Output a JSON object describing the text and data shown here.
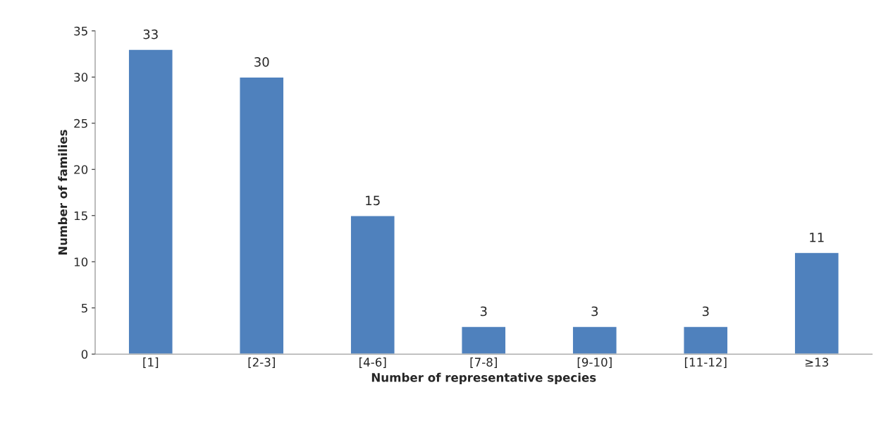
{
  "chart_data": {
    "type": "bar",
    "xlabel": "Number of representative species",
    "ylabel": "Number of families",
    "categories": [
      "[1]",
      "[2-3]",
      "[4-6]",
      "[7-8]",
      "[9-10]",
      "[11-12]",
      "≥13"
    ],
    "values": [
      33,
      30,
      15,
      3,
      3,
      3,
      11
    ],
    "color": "#4f81bd",
    "ylim": [
      0,
      35
    ],
    "yticks": [
      0,
      5,
      10,
      15,
      20,
      25,
      30,
      35
    ],
    "data_labels": true,
    "grid": false,
    "legend": false
  }
}
